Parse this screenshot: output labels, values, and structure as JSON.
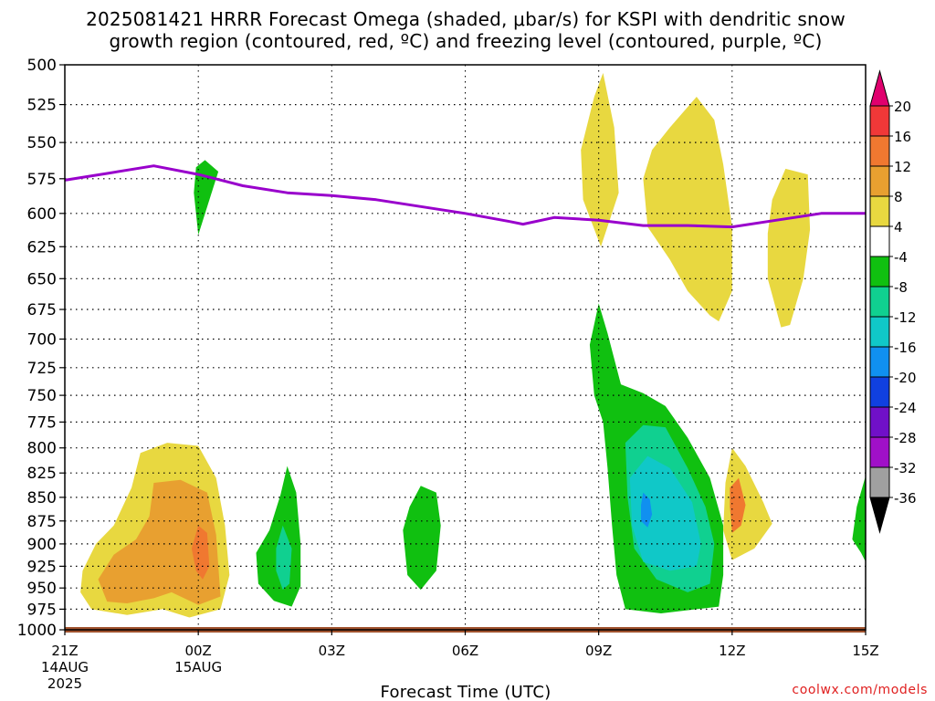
{
  "title": {
    "line1": "2025081421 HRRR Forecast Omega (shaded, μbar/s) for KSPI with dendritic snow",
    "line2": "growth region (contoured, red, ºC) and freezing level (contoured, purple, ºC)"
  },
  "credit": "coolwx.com/models",
  "chart_data": {
    "type": "time-height cross-section",
    "xlabel": "Forecast Time (UTC)",
    "ylabel": "",
    "y_unit": "mb",
    "y_scale": "log-pressure, inverted",
    "ylim": [
      1000,
      500
    ],
    "xlim_hours": [
      0,
      18
    ],
    "x_ticks": [
      {
        "hour": 0,
        "label": "21Z",
        "sub1": "14AUG",
        "sub2": "2025"
      },
      {
        "hour": 3,
        "label": "00Z",
        "sub1": "15AUG",
        "sub2": ""
      },
      {
        "hour": 6,
        "label": "03Z",
        "sub1": "",
        "sub2": ""
      },
      {
        "hour": 9,
        "label": "06Z",
        "sub1": "",
        "sub2": ""
      },
      {
        "hour": 12,
        "label": "09Z",
        "sub1": "",
        "sub2": ""
      },
      {
        "hour": 15,
        "label": "12Z",
        "sub1": "",
        "sub2": ""
      },
      {
        "hour": 18,
        "label": "15Z",
        "sub1": "",
        "sub2": ""
      }
    ],
    "y_ticks": [
      500,
      525,
      550,
      575,
      600,
      625,
      650,
      675,
      700,
      725,
      750,
      775,
      800,
      825,
      850,
      875,
      900,
      925,
      950,
      975,
      1000
    ],
    "grid": true,
    "colorbar": {
      "ticks": [
        "20",
        "16",
        "12",
        "8",
        "4",
        "-4",
        "-8",
        "-12",
        "-16",
        "-20",
        "-24",
        "-28",
        "-32",
        "-36"
      ],
      "colors": [
        "#e0006e",
        "#f03838",
        "#f07830",
        "#e8a030",
        "#e8d840",
        "#ffffff",
        "#10c010",
        "#10d090",
        "#10c8c8",
        "#1090f0",
        "#1040e0",
        "#7010c8",
        "#a010c8",
        "#a0a0a0",
        "#000000"
      ]
    },
    "freezing_level": {
      "color": "#9900cc",
      "points": [
        [
          0,
          576
        ],
        [
          1.0,
          571
        ],
        [
          2.0,
          566
        ],
        [
          3.0,
          572
        ],
        [
          4.0,
          580
        ],
        [
          5.0,
          585
        ],
        [
          6.0,
          587
        ],
        [
          7.0,
          590
        ],
        [
          8.0,
          595
        ],
        [
          9.0,
          600
        ],
        [
          10.0,
          606
        ],
        [
          10.3,
          608
        ],
        [
          11.0,
          603
        ],
        [
          12.0,
          605
        ],
        [
          13.0,
          609
        ],
        [
          14.0,
          609
        ],
        [
          15.0,
          610
        ],
        [
          16.0,
          605
        ],
        [
          17.0,
          600
        ],
        [
          18.0,
          600
        ]
      ]
    },
    "surface_band": {
      "color": "#a0522d",
      "from_hour": 0,
      "to_hour": 18,
      "pressure": 1000
    },
    "omega_regions": [
      {
        "color": "#e8d840",
        "points": [
          [
            0.4,
            930
          ],
          [
            0.7,
            900
          ],
          [
            1.1,
            880
          ],
          [
            1.5,
            840
          ],
          [
            1.7,
            805
          ],
          [
            2.3,
            795
          ],
          [
            3.0,
            798
          ],
          [
            3.4,
            830
          ],
          [
            3.6,
            880
          ],
          [
            3.7,
            935
          ],
          [
            3.5,
            975
          ],
          [
            2.8,
            985
          ],
          [
            2.2,
            975
          ],
          [
            1.4,
            982
          ],
          [
            0.6,
            975
          ],
          [
            0.35,
            955
          ]
        ]
      },
      {
        "color": "#e8a030",
        "points": [
          [
            0.75,
            940
          ],
          [
            1.1,
            912
          ],
          [
            1.6,
            895
          ],
          [
            1.9,
            870
          ],
          [
            2.0,
            835
          ],
          [
            2.6,
            832
          ],
          [
            3.2,
            845
          ],
          [
            3.4,
            890
          ],
          [
            3.5,
            960
          ],
          [
            3.0,
            970
          ],
          [
            2.4,
            955
          ],
          [
            2.0,
            962
          ],
          [
            1.4,
            968
          ],
          [
            0.95,
            966
          ]
        ]
      },
      {
        "color": "#f07830",
        "points": [
          [
            3.0,
            880
          ],
          [
            3.2,
            888
          ],
          [
            3.25,
            925
          ],
          [
            3.1,
            940
          ],
          [
            2.95,
            930
          ],
          [
            2.85,
            905
          ]
        ]
      },
      {
        "color": "#10c010",
        "points": [
          [
            2.95,
            567
          ],
          [
            3.15,
            562
          ],
          [
            3.45,
            570
          ],
          [
            3.0,
            616
          ],
          [
            2.9,
            585
          ]
        ]
      },
      {
        "color": "#10c010",
        "points": [
          [
            4.3,
            910
          ],
          [
            4.6,
            885
          ],
          [
            4.85,
            847
          ],
          [
            5.0,
            818
          ],
          [
            5.2,
            845
          ],
          [
            5.3,
            900
          ],
          [
            5.3,
            948
          ],
          [
            5.1,
            972
          ],
          [
            4.7,
            965
          ],
          [
            4.35,
            945
          ]
        ]
      },
      {
        "color": "#10d090",
        "points": [
          [
            4.75,
            905
          ],
          [
            4.9,
            880
          ],
          [
            5.1,
            905
          ],
          [
            5.05,
            945
          ],
          [
            4.9,
            952
          ],
          [
            4.75,
            930
          ]
        ]
      },
      {
        "color": "#10c010",
        "points": [
          [
            7.6,
            885
          ],
          [
            7.75,
            860
          ],
          [
            8.0,
            838
          ],
          [
            8.35,
            845
          ],
          [
            8.45,
            880
          ],
          [
            8.35,
            930
          ],
          [
            8.0,
            952
          ],
          [
            7.7,
            935
          ]
        ]
      },
      {
        "color": "#10c010",
        "points": [
          [
            11.8,
            705
          ],
          [
            12.0,
            670
          ],
          [
            12.2,
            695
          ],
          [
            12.5,
            740
          ],
          [
            13.0,
            748
          ],
          [
            13.5,
            760
          ],
          [
            14.0,
            790
          ],
          [
            14.5,
            830
          ],
          [
            14.8,
            880
          ],
          [
            14.8,
            935
          ],
          [
            14.7,
            972
          ],
          [
            13.4,
            980
          ],
          [
            12.6,
            975
          ],
          [
            12.4,
            935
          ],
          [
            12.3,
            880
          ],
          [
            12.2,
            820
          ],
          [
            12.1,
            775
          ],
          [
            11.9,
            750
          ]
        ]
      },
      {
        "color": "#10d090",
        "points": [
          [
            12.6,
            795
          ],
          [
            13.0,
            778
          ],
          [
            13.5,
            780
          ],
          [
            14.0,
            820
          ],
          [
            14.4,
            860
          ],
          [
            14.6,
            900
          ],
          [
            14.5,
            945
          ],
          [
            14.0,
            955
          ],
          [
            13.3,
            940
          ],
          [
            12.8,
            905
          ],
          [
            12.65,
            850
          ]
        ]
      },
      {
        "color": "#10c8c8",
        "points": [
          [
            12.7,
            830
          ],
          [
            13.1,
            808
          ],
          [
            13.6,
            820
          ],
          [
            14.1,
            855
          ],
          [
            14.3,
            900
          ],
          [
            14.2,
            925
          ],
          [
            13.6,
            930
          ],
          [
            13.0,
            920
          ],
          [
            12.75,
            880
          ]
        ]
      },
      {
        "color": "#1090f0",
        "points": [
          [
            13.0,
            845
          ],
          [
            13.15,
            852
          ],
          [
            13.2,
            868
          ],
          [
            13.1,
            882
          ],
          [
            12.95,
            875
          ],
          [
            12.95,
            858
          ]
        ]
      },
      {
        "color": "#e8d840",
        "points": [
          [
            11.6,
            555
          ],
          [
            11.9,
            520
          ],
          [
            12.1,
            505
          ],
          [
            12.35,
            540
          ],
          [
            12.45,
            585
          ],
          [
            12.05,
            625
          ],
          [
            11.65,
            590
          ]
        ]
      },
      {
        "color": "#e8d840",
        "points": [
          [
            13.0,
            575
          ],
          [
            13.2,
            555
          ],
          [
            13.6,
            540
          ],
          [
            14.2,
            520
          ],
          [
            14.6,
            535
          ],
          [
            14.8,
            565
          ],
          [
            15.0,
            610
          ],
          [
            15.0,
            660
          ],
          [
            14.7,
            685
          ],
          [
            14.5,
            680
          ],
          [
            14.0,
            660
          ],
          [
            13.6,
            635
          ],
          [
            13.1,
            610
          ]
        ]
      },
      {
        "color": "#e8d840",
        "points": [
          [
            15.8,
            615
          ],
          [
            15.9,
            590
          ],
          [
            16.2,
            568
          ],
          [
            16.7,
            572
          ],
          [
            16.75,
            612
          ],
          [
            16.6,
            650
          ],
          [
            16.3,
            688
          ],
          [
            16.1,
            690
          ],
          [
            15.8,
            650
          ]
        ]
      },
      {
        "color": "#e8d840",
        "points": [
          [
            14.85,
            835
          ],
          [
            15.0,
            800
          ],
          [
            15.3,
            818
          ],
          [
            15.7,
            855
          ],
          [
            15.9,
            878
          ],
          [
            15.5,
            905
          ],
          [
            15.0,
            918
          ],
          [
            14.8,
            885
          ]
        ]
      },
      {
        "color": "#f07830",
        "points": [
          [
            14.95,
            840
          ],
          [
            15.15,
            830
          ],
          [
            15.3,
            858
          ],
          [
            15.2,
            880
          ],
          [
            15.0,
            888
          ],
          [
            14.95,
            860
          ]
        ]
      },
      {
        "color": "#10c010",
        "points": [
          [
            17.7,
            895
          ],
          [
            17.8,
            860
          ],
          [
            18.0,
            828
          ],
          [
            18.0,
            920
          ],
          [
            17.9,
            910
          ]
        ]
      }
    ]
  }
}
